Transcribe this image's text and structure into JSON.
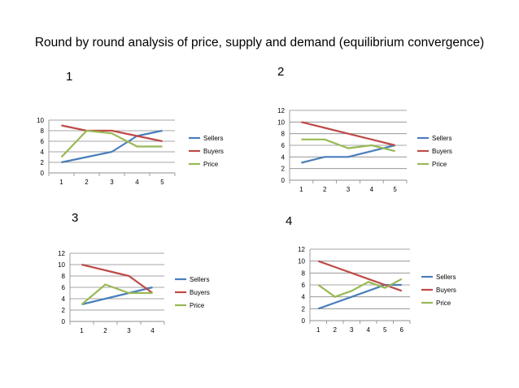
{
  "slide": {
    "title": "Round by round analysis of price, supply and demand (equilibrium convergence)"
  },
  "colors": {
    "sellers": "#4a7ebb",
    "buyers": "#be4b48",
    "price": "#98b954",
    "grid": "#878787"
  },
  "chart_data": [
    {
      "type": "line",
      "round_label": "1",
      "x": [
        1,
        2,
        3,
        4,
        5
      ],
      "ylim": [
        0,
        10
      ],
      "ytick_step": 2,
      "grid": true,
      "legend": "right",
      "series": [
        {
          "name": "Sellers",
          "values": [
            2,
            3,
            4,
            7,
            8
          ]
        },
        {
          "name": "Buyers",
          "values": [
            9,
            8,
            8,
            7,
            6
          ]
        },
        {
          "name": "Price",
          "values": [
            3,
            8,
            7.5,
            5,
            5
          ]
        }
      ]
    },
    {
      "type": "line",
      "round_label": "2",
      "x": [
        1,
        2,
        3,
        4,
        5
      ],
      "ylim": [
        0,
        12
      ],
      "ytick_step": 2,
      "grid": true,
      "legend": "right",
      "series": [
        {
          "name": "Sellers",
          "values": [
            3,
            4,
            4,
            5,
            6
          ]
        },
        {
          "name": "Buyers",
          "values": [
            10,
            9,
            8,
            7,
            6
          ]
        },
        {
          "name": "Price",
          "values": [
            7,
            7,
            5.5,
            6,
            5
          ]
        }
      ]
    },
    {
      "type": "line",
      "round_label": "3",
      "x": [
        1,
        2,
        3,
        4
      ],
      "ylim": [
        0,
        12
      ],
      "ytick_step": 2,
      "grid": true,
      "legend": "right",
      "series": [
        {
          "name": "Sellers",
          "values": [
            3,
            4,
            5,
            6
          ]
        },
        {
          "name": "Buyers",
          "values": [
            10,
            9,
            8,
            5
          ]
        },
        {
          "name": "Price",
          "values": [
            3,
            6.5,
            5,
            5
          ]
        }
      ]
    },
    {
      "type": "line",
      "round_label": "4",
      "x": [
        1,
        2,
        3,
        4,
        5,
        6
      ],
      "ylim": [
        0,
        12
      ],
      "ytick_step": 2,
      "grid": true,
      "legend": "right",
      "series": [
        {
          "name": "Sellers",
          "values": [
            2,
            3,
            4,
            5,
            6,
            6
          ]
        },
        {
          "name": "Buyers",
          "values": [
            10,
            9,
            8,
            7,
            6,
            5
          ]
        },
        {
          "name": "Price",
          "values": [
            6,
            4,
            5,
            6.5,
            5.5,
            7
          ]
        }
      ]
    }
  ]
}
